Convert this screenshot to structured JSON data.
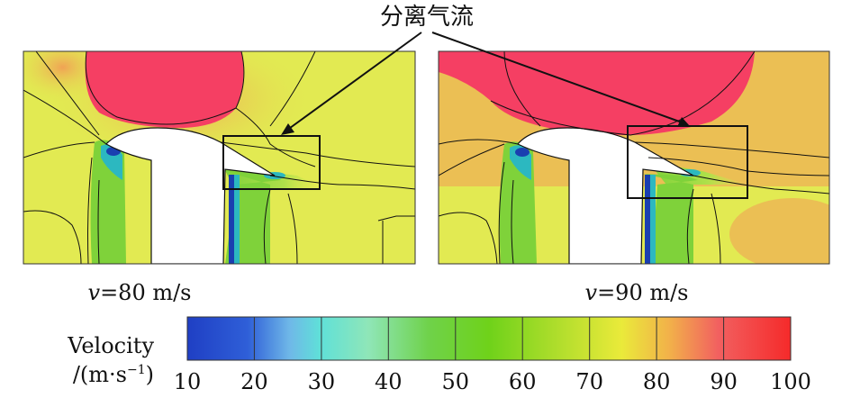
{
  "annotation": {
    "label": "分离气流"
  },
  "panels": [
    {
      "v_symbol": "v",
      "caption_rest": "=80 m/s"
    },
    {
      "v_symbol": "v",
      "caption_rest": "=90 m/s"
    }
  ],
  "colorbar": {
    "title_line1": "Velocity",
    "title_line2": "/(m·s",
    "title_sup": "−1",
    "title_close": ")",
    "ticks": [
      "10",
      "20",
      "30",
      "40",
      "50",
      "60",
      "70",
      "80",
      "90",
      "100"
    ],
    "colors": [
      "#1f3fc4",
      "#3a78e0",
      "#5fd6e0",
      "#8fe6b8",
      "#6fd24a",
      "#70d21a",
      "#a8dc2a",
      "#e6e63a",
      "#f0a040",
      "#f05050",
      "#f52a2a"
    ]
  },
  "palette": {
    "fast": "#f53f63",
    "orange": "#f29a55",
    "ambient": "#e2ea52",
    "green": "#7fd23a",
    "slow": "#2cb8c0",
    "core": "#1a3fb0"
  }
}
